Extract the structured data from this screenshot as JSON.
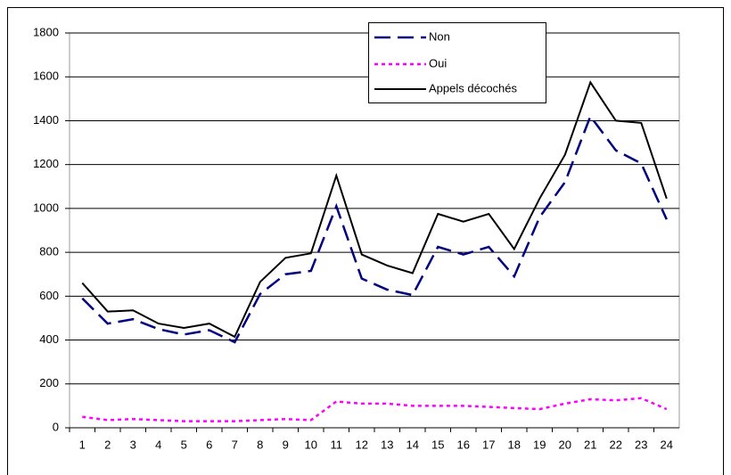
{
  "chart_data": {
    "type": "line",
    "categories": [
      "1",
      "2",
      "3",
      "4",
      "5",
      "6",
      "7",
      "8",
      "9",
      "10",
      "11",
      "12",
      "13",
      "14",
      "15",
      "16",
      "17",
      "18",
      "19",
      "20",
      "21",
      "22",
      "23",
      "24"
    ],
    "series": [
      {
        "name": "Non",
        "color": "#000080",
        "line_style": "dashed",
        "values": [
          590,
          475,
          495,
          450,
          425,
          445,
          390,
          610,
          700,
          715,
          1010,
          680,
          630,
          605,
          825,
          790,
          825,
          690,
          960,
          1120,
          1420,
          1265,
          1205,
          950
        ]
      },
      {
        "name": "Oui",
        "color": "#ff00ff",
        "line_style": "dotted",
        "values": [
          50,
          35,
          40,
          35,
          30,
          30,
          30,
          35,
          40,
          35,
          120,
          110,
          110,
          100,
          100,
          100,
          95,
          90,
          85,
          110,
          130,
          125,
          135,
          85
        ]
      },
      {
        "name": "Appels décochés",
        "color": "#000000",
        "line_style": "solid",
        "values": [
          660,
          530,
          535,
          475,
          455,
          475,
          415,
          665,
          775,
          795,
          1150,
          790,
          740,
          705,
          975,
          940,
          975,
          815,
          1045,
          1245,
          1575,
          1400,
          1390,
          1045
        ]
      }
    ],
    "ylim": [
      0,
      1800
    ],
    "yticks": [
      0,
      200,
      400,
      600,
      800,
      1000,
      1200,
      1400,
      1600,
      1800
    ],
    "grid": true,
    "legend": "top"
  }
}
